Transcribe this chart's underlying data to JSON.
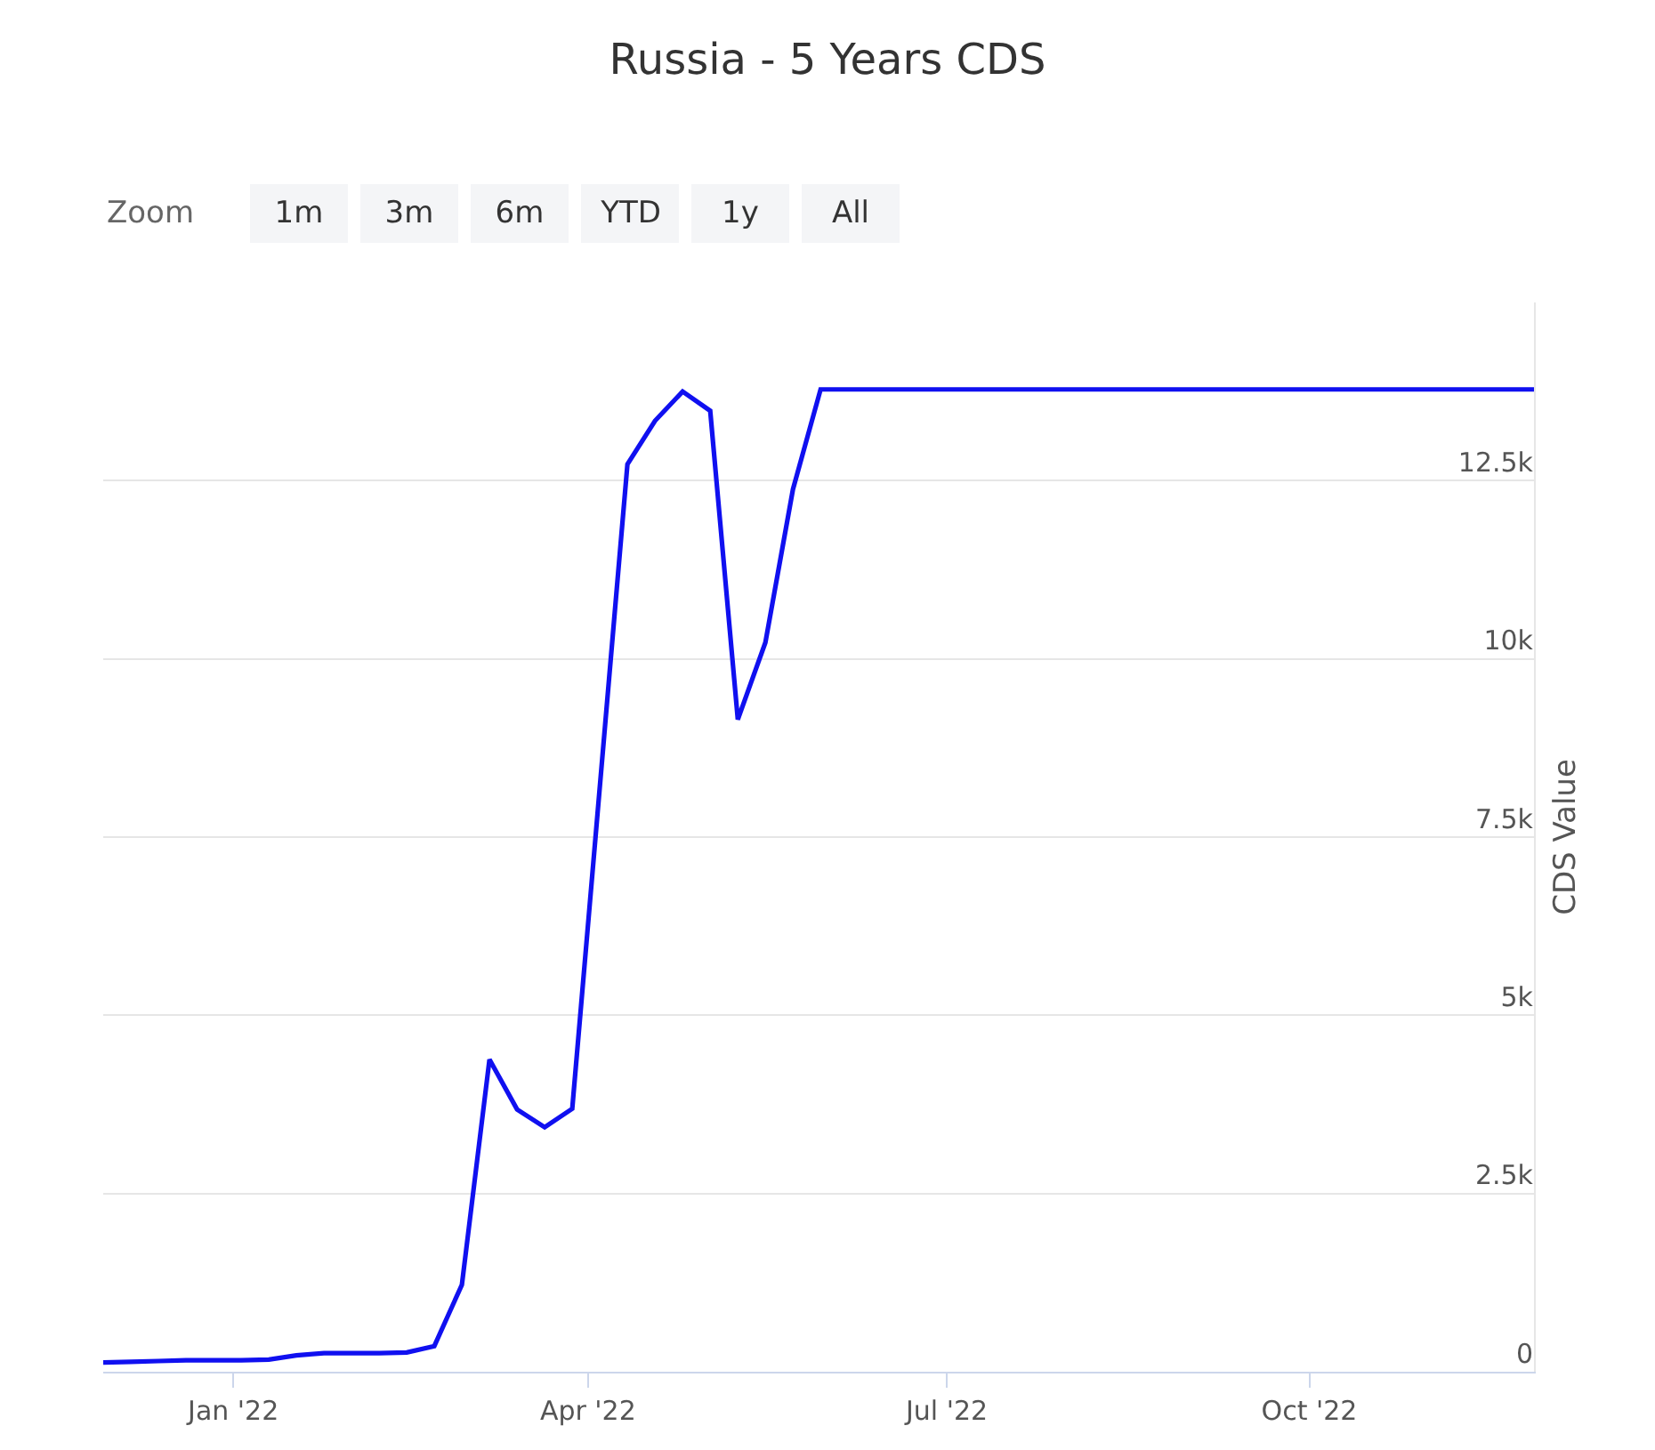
{
  "chart_data": {
    "type": "line",
    "title": "Russia - 5 Years CDS",
    "ylabel": "CDS Value",
    "x": [
      "2021-11-29",
      "2021-12-06",
      "2021-12-13",
      "2021-12-20",
      "2021-12-27",
      "2022-01-03",
      "2022-01-10",
      "2022-01-17",
      "2022-01-24",
      "2022-01-31",
      "2022-02-07",
      "2022-02-14",
      "2022-02-21",
      "2022-02-28",
      "2022-03-07",
      "2022-03-14",
      "2022-03-21",
      "2022-03-28",
      "2022-04-11",
      "2022-04-18",
      "2022-04-25",
      "2022-05-02",
      "2022-05-09",
      "2022-05-16",
      "2022-05-23",
      "2022-05-30",
      "2022-11-27"
    ],
    "series": [
      {
        "color": "#1010f0",
        "values": [
          130,
          140,
          150,
          160,
          160,
          160,
          170,
          230,
          260,
          260,
          260,
          270,
          360,
          1220,
          4380,
          3680,
          3430,
          3690,
          12730,
          13340,
          13750,
          13480,
          9150,
          10230,
          12380,
          13780,
          13780
        ]
      }
    ],
    "xlim": [
      "2021-11-29",
      "2022-11-27"
    ],
    "xticks": [
      {
        "value": "2022-01-01",
        "label": "Jan '22"
      },
      {
        "value": "2022-04-01",
        "label": "Apr '22"
      },
      {
        "value": "2022-07-01",
        "label": "Jul '22"
      },
      {
        "value": "2022-10-01",
        "label": "Oct '22"
      }
    ],
    "ylim": [
      0,
      15000
    ],
    "yticks": [
      {
        "value": 0,
        "label": "0"
      },
      {
        "value": 2500,
        "label": "2.5k"
      },
      {
        "value": 5000,
        "label": "5k"
      },
      {
        "value": 7500,
        "label": "7.5k"
      },
      {
        "value": 10000,
        "label": "10k"
      },
      {
        "value": 12500,
        "label": "12.5k"
      }
    ],
    "grid": "y",
    "marker": "none",
    "line_style": "solid",
    "annotations": [
      "Zoom",
      "1m",
      "3m",
      "6m",
      "YTD",
      "1y",
      "All"
    ]
  }
}
